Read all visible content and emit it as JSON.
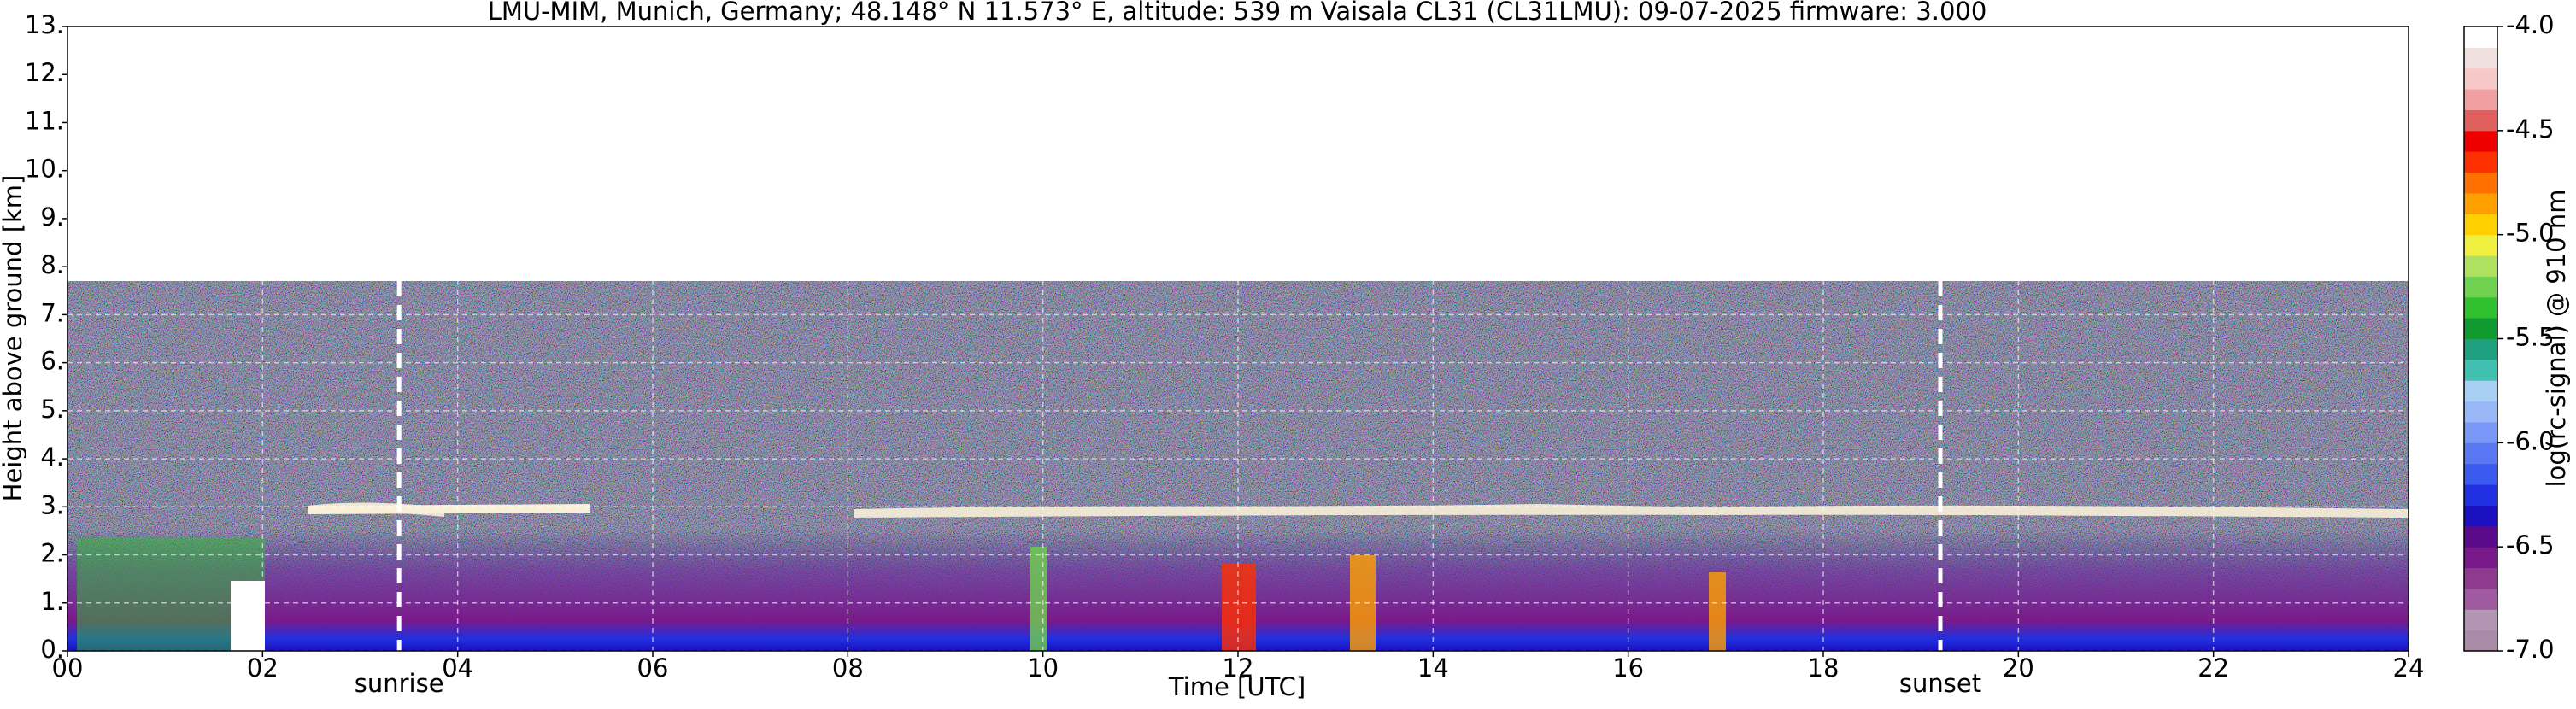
{
  "chart_data": {
    "type": "heatmap",
    "title": "LMU-MIM, Munich, Germany; 48.148° N 11.573° E, altitude: 539 m    Vaisala CL31 (CL31LMU): 09-07-2025    firmware: 3.000",
    "xlabel": "Time [UTC]",
    "ylabel": "Height above ground [km]",
    "xlim": [
      0,
      24
    ],
    "xticks": [
      {
        "value": 0,
        "label": "00"
      },
      {
        "value": 2,
        "label": "02"
      },
      {
        "value": 4,
        "label": "04"
      },
      {
        "value": 6,
        "label": "06"
      },
      {
        "value": 8,
        "label": "08"
      },
      {
        "value": 10,
        "label": "10"
      },
      {
        "value": 12,
        "label": "12"
      },
      {
        "value": 14,
        "label": "14"
      },
      {
        "value": 16,
        "label": "16"
      },
      {
        "value": 18,
        "label": "18"
      },
      {
        "value": 20,
        "label": "20"
      },
      {
        "value": 22,
        "label": "22"
      },
      {
        "value": 24,
        "label": "24"
      }
    ],
    "ylim": [
      0,
      13
    ],
    "yticks": [
      {
        "value": 0,
        "label": "0."
      },
      {
        "value": 1,
        "label": "1."
      },
      {
        "value": 2,
        "label": "2."
      },
      {
        "value": 3,
        "label": "3."
      },
      {
        "value": 4,
        "label": "4."
      },
      {
        "value": 5,
        "label": "5."
      },
      {
        "value": 6,
        "label": "6."
      },
      {
        "value": 7,
        "label": "7."
      },
      {
        "value": 8,
        "label": "8."
      },
      {
        "value": 9,
        "label": "9."
      },
      {
        "value": 10,
        "label": "10."
      },
      {
        "value": 11,
        "label": "11."
      },
      {
        "value": 12,
        "label": "12."
      },
      {
        "value": 13,
        "label": "13."
      }
    ],
    "grid": true,
    "annotations": [
      {
        "text": "sunrise",
        "x": 3.4
      },
      {
        "text": "sunset",
        "x": 19.2
      }
    ],
    "colorbar": {
      "label": "log(rc-signal) @ 910 nm",
      "lim": [
        -7.0,
        -4.0
      ],
      "ticks": [
        {
          "value": -7.0,
          "label": "-7.0"
        },
        {
          "value": -6.5,
          "label": "-6.5"
        },
        {
          "value": -6.0,
          "label": "-6.0"
        },
        {
          "value": -5.5,
          "label": "-5.5"
        },
        {
          "value": -5.0,
          "label": "-5.0"
        },
        {
          "value": -4.5,
          "label": "-4.5"
        },
        {
          "value": -4.0,
          "label": "-4.0"
        }
      ],
      "colors": [
        "#a88ca8",
        "#b494b4",
        "#a05aa0",
        "#8e3a8e",
        "#7a1a8a",
        "#5a0a8a",
        "#1a10c0",
        "#2030e0",
        "#3a5af0",
        "#5a78f4",
        "#7a98f8",
        "#9ab8f8",
        "#a8d0f4",
        "#40c0b0",
        "#20a080",
        "#109a30",
        "#30c030",
        "#70d050",
        "#b0e060",
        "#f0f040",
        "#ffd000",
        "#ffa000",
        "#ff7000",
        "#ff3000",
        "#ee0000",
        "#e06060",
        "#f0a0a0",
        "#f8c8c8",
        "#f0e0e0",
        "#ffffff"
      ]
    }
  }
}
